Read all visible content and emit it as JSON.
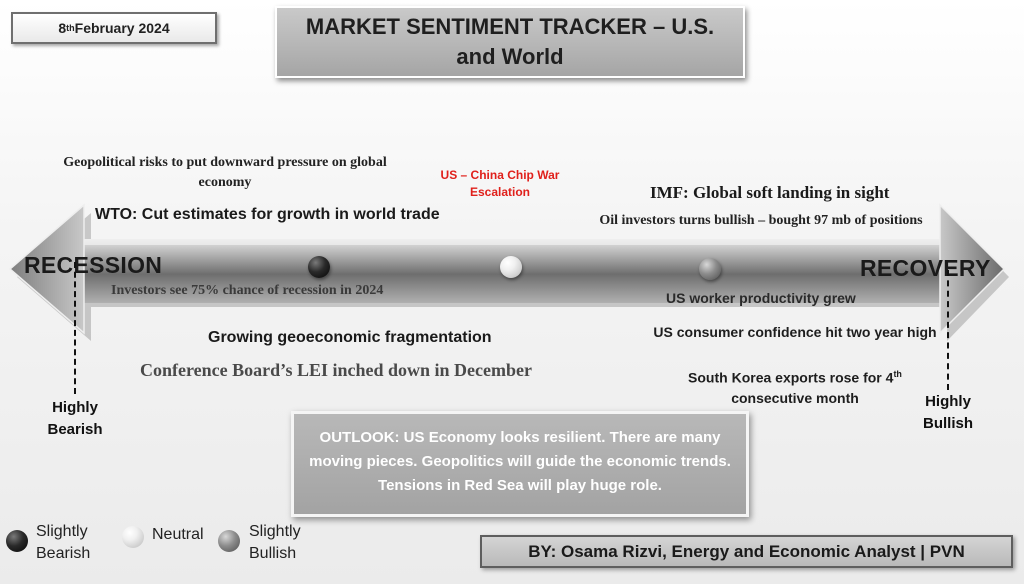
{
  "date": {
    "day": "8",
    "suffix": "th",
    "rest": " February 2024"
  },
  "title": "MARKET SENTIMENT TRACKER – U.S. and World",
  "axis": {
    "left_label": "RECESSION",
    "right_label": "RECOVERY"
  },
  "extremes": {
    "left": [
      "Highly",
      "Bearish"
    ],
    "right": [
      "Highly",
      "Bullish"
    ]
  },
  "news_left": {
    "geopolitical": "Geopolitical risks to put downward pressure on global economy",
    "wto": "WTO: Cut estimates for growth in world trade",
    "investors": "Investors see 75% chance of recession in 2024",
    "fragmentation": "Growing geoeconomic fragmentation",
    "lei": "Conference Board’s LEI inched down in December"
  },
  "news_center": {
    "chip_war": "US – China Chip War Escalation",
    "chip_war_color": "#e0201b"
  },
  "news_right": {
    "imf": "IMF: Global soft landing in sight",
    "oil": "Oil investors turns bullish – bought 97 mb of positions",
    "productivity": "US worker productivity grew",
    "confidence": "US consumer confidence hit two year high",
    "korea_pre": "South Korea exports rose for 4",
    "korea_sup": "th",
    "korea_post": "consecutive month"
  },
  "outlook": "OUTLOOK: US Economy looks resilient. There are many moving pieces. Geopolitics will guide the economic trends. Tensions in Red Sea will play huge role.",
  "legend": [
    {
      "line1": "Slightly",
      "line2": "Bearish",
      "icon": "dark-ball-icon"
    },
    {
      "line1": "Neutral",
      "line2": "",
      "icon": "light-ball-icon"
    },
    {
      "line1": "Slightly",
      "line2": "Bullish",
      "icon": "mid-ball-icon"
    }
  ],
  "byline": "BY: Osama Rizvi, Energy and Economic Analyst | PVN"
}
